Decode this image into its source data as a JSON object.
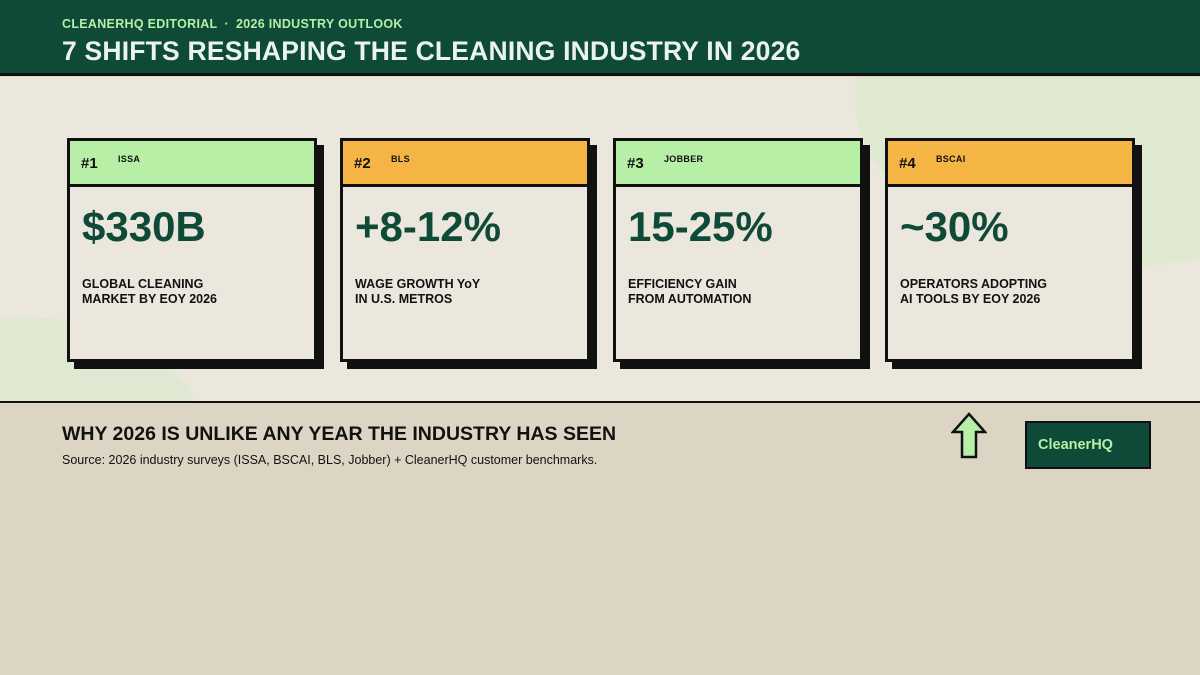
{
  "header": {
    "kicker_left": "CLEANERHQ EDITORIAL",
    "kicker_sep": "·",
    "kicker_right": "2026 INDUSTRY OUTLOOK",
    "title": "7 SHIFTS RESHAPING THE CLEANING INDUSTRY IN 2026"
  },
  "cards": [
    {
      "rank": "#1",
      "source": "ISSA",
      "stat": "$330B",
      "label_line1": "GLOBAL CLEANING",
      "label_line2": "MARKET BY EOY 2026",
      "header_color": "#b6efa5"
    },
    {
      "rank": "#2",
      "source": "BLS",
      "stat": "+8-12%",
      "label_line1": "WAGE GROWTH YoY",
      "label_line2": "IN U.S. METROS",
      "header_color": "#f4b545"
    },
    {
      "rank": "#3",
      "source": "JOBBER",
      "stat": "15-25%",
      "label_line1": "EFFICIENCY GAIN",
      "label_line2": "FROM AUTOMATION",
      "header_color": "#b6efa5"
    },
    {
      "rank": "#4",
      "source": "BSCAI",
      "stat": "~30%",
      "label_line1": "OPERATORS ADOPTING",
      "label_line2": "AI TOOLS BY EOY 2026",
      "header_color": "#f4b545"
    }
  ],
  "footer": {
    "title": "WHY 2026 IS UNLIKE ANY YEAR THE INDUSTRY HAS SEEN",
    "source": "Source: 2026 industry surveys (ISSA, BSCAI, BLS, Jobber) + CleanerHQ customer benchmarks.",
    "arrow_icon": "up-arrow-icon",
    "brand": "CleanerHQ"
  },
  "colors": {
    "dark_green": "#0f4a38",
    "light_green": "#b6efa5",
    "orange": "#f4b545",
    "cream": "#ece7dc",
    "tan": "#ddd5c4"
  }
}
